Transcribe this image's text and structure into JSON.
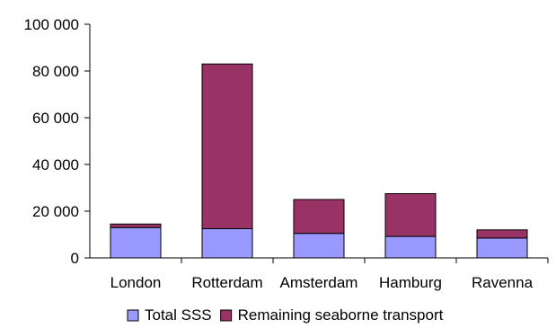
{
  "chart_data": {
    "type": "bar",
    "stacked": true,
    "categories": [
      "London",
      "Rotterdam",
      "Amsterdam",
      "Hamburg",
      "Ravenna"
    ],
    "series": [
      {
        "name": "Total SSS",
        "color": "#9999ff",
        "values": [
          13000,
          12500,
          10500,
          9200,
          8500
        ]
      },
      {
        "name": "Remaining seaborne transport",
        "color": "#993366",
        "values": [
          1500,
          70500,
          14500,
          18300,
          3500
        ]
      }
    ],
    "yticks": [
      "0",
      "20 000",
      "40 000",
      "60 000",
      "80 000",
      "100 000"
    ],
    "ylim": [
      0,
      100000
    ],
    "ytick_step": 20000,
    "grid": false,
    "legend": "bottom-center",
    "title": "",
    "xlabel": "",
    "ylabel": ""
  }
}
